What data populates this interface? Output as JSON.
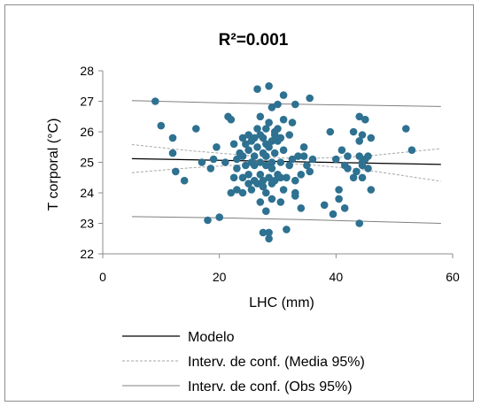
{
  "chart_data": {
    "type": "scatter",
    "title": "R²=0.001",
    "xlabel": "LHC (mm)",
    "ylabel": "T corporal (°C)",
    "xlim": [
      0,
      60
    ],
    "ylim": [
      22,
      28
    ],
    "xticks": [
      "0",
      "20",
      "40",
      "60"
    ],
    "yticks": [
      "22",
      "23",
      "24",
      "25",
      "26",
      "27",
      "28"
    ],
    "grid": false,
    "legend_position": "bottom",
    "colors": {
      "points": "#2e7191",
      "model": "#000000",
      "mean_ci": "#a6a6a6",
      "obs_ci": "#808080"
    },
    "series": [
      {
        "name": "",
        "kind": "points",
        "points": [
          [
            9,
            27.0
          ],
          [
            10,
            26.2
          ],
          [
            12,
            25.8
          ],
          [
            12,
            25.3
          ],
          [
            12.5,
            24.7
          ],
          [
            14,
            24.4
          ],
          [
            16,
            26.1
          ],
          [
            17,
            25.0
          ],
          [
            18,
            23.1
          ],
          [
            18.5,
            24.8
          ],
          [
            19,
            25.1
          ],
          [
            19.5,
            25.5
          ],
          [
            20,
            23.2
          ],
          [
            21,
            25.0
          ],
          [
            21.5,
            26.5
          ],
          [
            22,
            26.4
          ],
          [
            22,
            24.0
          ],
          [
            22.5,
            24.5
          ],
          [
            22.5,
            25.6
          ],
          [
            23,
            24.1
          ],
          [
            23,
            25.1
          ],
          [
            23,
            24.8
          ],
          [
            23.5,
            25.3
          ],
          [
            24,
            25.8
          ],
          [
            24,
            24.5
          ],
          [
            24,
            24.0
          ],
          [
            24,
            25.2
          ],
          [
            24.5,
            25.6
          ],
          [
            24.5,
            24.9
          ],
          [
            25,
            25.4
          ],
          [
            25,
            24.3
          ],
          [
            25,
            25.9
          ],
          [
            25,
            24.6
          ],
          [
            25.5,
            24.1
          ],
          [
            25.5,
            25.0
          ],
          [
            25.5,
            25.7
          ],
          [
            26,
            24.4
          ],
          [
            26,
            25.2
          ],
          [
            26,
            25.8
          ],
          [
            26,
            24.9
          ],
          [
            26.5,
            26.1
          ],
          [
            26.5,
            24.3
          ],
          [
            26.5,
            27.4
          ],
          [
            26.5,
            25.5
          ],
          [
            27,
            26.5
          ],
          [
            27,
            23.7
          ],
          [
            27,
            25.0
          ],
          [
            27,
            24.6
          ],
          [
            27,
            25.9
          ],
          [
            27.5,
            24.2
          ],
          [
            27.5,
            25.3
          ],
          [
            27.5,
            25.8
          ],
          [
            27.5,
            24.4
          ],
          [
            27.5,
            22.7
          ],
          [
            28,
            25.6
          ],
          [
            28,
            24.9
          ],
          [
            28,
            24.0
          ],
          [
            28,
            23.4
          ],
          [
            28,
            26.1
          ],
          [
            28,
            25.2
          ],
          [
            28.5,
            22.7
          ],
          [
            28.5,
            24.5
          ],
          [
            28.5,
            25.5
          ],
          [
            28.5,
            26.3
          ],
          [
            28.5,
            27.5
          ],
          [
            28.5,
            22.5
          ],
          [
            29,
            25.0
          ],
          [
            29,
            24.3
          ],
          [
            29,
            25.7
          ],
          [
            29,
            24.8
          ],
          [
            29,
            23.8
          ],
          [
            29,
            26.8
          ],
          [
            29.5,
            25.3
          ],
          [
            29.5,
            24.4
          ],
          [
            29.5,
            26.0
          ],
          [
            29.5,
            25.9
          ],
          [
            30,
            24.6
          ],
          [
            30,
            25.7
          ],
          [
            30,
            26.9
          ],
          [
            30,
            26.1
          ],
          [
            30.5,
            25.0
          ],
          [
            30.5,
            24.5
          ],
          [
            30.5,
            25.8
          ],
          [
            30.5,
            23.7
          ],
          [
            31,
            25.4
          ],
          [
            31,
            24.1
          ],
          [
            31,
            27.2
          ],
          [
            31,
            26.4
          ],
          [
            31.5,
            22.8
          ],
          [
            31.5,
            24.5
          ],
          [
            32,
            24.9
          ],
          [
            32,
            25.9
          ],
          [
            32.5,
            26.3
          ],
          [
            32.5,
            25.1
          ],
          [
            33,
            24.4
          ],
          [
            33,
            24.0
          ],
          [
            33,
            26.9
          ],
          [
            33,
            23.9
          ],
          [
            33.5,
            25.2
          ],
          [
            34,
            24.6
          ],
          [
            34,
            23.5
          ],
          [
            34.5,
            25.2
          ],
          [
            34.5,
            25.5
          ],
          [
            35,
            24.9
          ],
          [
            35.5,
            24.7
          ],
          [
            35.5,
            27.1
          ],
          [
            36,
            25.1
          ],
          [
            38,
            23.6
          ],
          [
            39,
            26.0
          ],
          [
            39.5,
            23.3
          ],
          [
            40,
            25.1
          ],
          [
            40.5,
            24.1
          ],
          [
            40.5,
            23.8
          ],
          [
            41,
            25.4
          ],
          [
            41.5,
            24.9
          ],
          [
            41.5,
            23.5
          ],
          [
            42,
            25.2
          ],
          [
            42,
            24.8
          ],
          [
            43,
            24.5
          ],
          [
            43,
            26.0
          ],
          [
            43.5,
            24.7
          ],
          [
            44,
            25.7
          ],
          [
            44,
            26.5
          ],
          [
            44,
            25.2
          ],
          [
            44,
            23.0
          ],
          [
            44.5,
            25.9
          ],
          [
            44.5,
            25.0
          ],
          [
            44.5,
            24.9
          ],
          [
            44.5,
            24.5
          ],
          [
            45,
            26.4
          ],
          [
            45,
            25.1
          ],
          [
            45.5,
            25.2
          ],
          [
            45.5,
            24.8
          ],
          [
            46,
            25.8
          ],
          [
            46,
            24.1
          ],
          [
            52,
            26.1
          ],
          [
            53,
            25.4
          ]
        ]
      },
      {
        "name": "Modelo",
        "kind": "line",
        "points": [
          [
            5,
            25.12
          ],
          [
            58,
            24.93
          ]
        ]
      },
      {
        "name": "Interv. de conf. (Media 95%)",
        "kind": "dashed",
        "points": [
          [
            5,
            25.58
          ],
          [
            15,
            25.38
          ],
          [
            25,
            25.22
          ],
          [
            30,
            25.15
          ],
          [
            35,
            25.12
          ],
          [
            45,
            25.2
          ],
          [
            58,
            25.45
          ]
        ]
      },
      {
        "name": "",
        "kind": "dashed",
        "points": [
          [
            5,
            24.66
          ],
          [
            15,
            24.82
          ],
          [
            25,
            24.93
          ],
          [
            30,
            24.96
          ],
          [
            35,
            24.93
          ],
          [
            45,
            24.75
          ],
          [
            58,
            24.38
          ]
        ]
      },
      {
        "name": "Interv. de conf. (Obs 95%)",
        "kind": "line-grey",
        "points": [
          [
            5,
            27.02
          ],
          [
            20,
            26.95
          ],
          [
            35,
            26.9
          ],
          [
            58,
            26.83
          ]
        ]
      },
      {
        "name": "",
        "kind": "line-grey",
        "points": [
          [
            5,
            23.22
          ],
          [
            20,
            23.18
          ],
          [
            35,
            23.12
          ],
          [
            58,
            23.0
          ]
        ]
      }
    ]
  }
}
